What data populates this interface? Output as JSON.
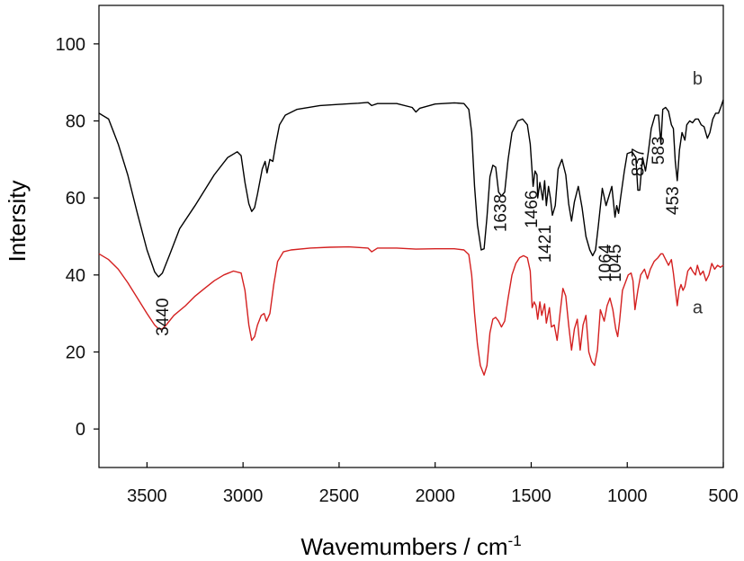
{
  "chart_data": {
    "type": "line",
    "xlabel": "Wavemumbers / cm",
    "xlabel_sup": "-1",
    "ylabel": "Intersity",
    "xlim": [
      3750,
      500
    ],
    "ylim": [
      -10,
      110
    ],
    "x_ticks": [
      3500,
      3000,
      2500,
      2000,
      1500,
      1000,
      500
    ],
    "y_ticks": [
      0,
      20,
      40,
      60,
      80,
      100
    ],
    "grid": false,
    "colors": {
      "a": "#d42020",
      "b": "#000000"
    },
    "series": [
      {
        "name": "b",
        "color": "#000000",
        "points": [
          [
            3750,
            82
          ],
          [
            3700,
            80.5
          ],
          [
            3650,
            74
          ],
          [
            3600,
            66
          ],
          [
            3550,
            56
          ],
          [
            3500,
            46.5
          ],
          [
            3460,
            40.8
          ],
          [
            3440,
            39.5
          ],
          [
            3420,
            40.5
          ],
          [
            3380,
            45.5
          ],
          [
            3330,
            52
          ],
          [
            3250,
            58
          ],
          [
            3150,
            66
          ],
          [
            3080,
            70.5
          ],
          [
            3030,
            72
          ],
          [
            3010,
            71
          ],
          [
            2990,
            64
          ],
          [
            2970,
            58.5
          ],
          [
            2955,
            56.5
          ],
          [
            2940,
            57.5
          ],
          [
            2925,
            61
          ],
          [
            2900,
            67.5
          ],
          [
            2885,
            69.5
          ],
          [
            2875,
            66.5
          ],
          [
            2860,
            70
          ],
          [
            2845,
            69.5
          ],
          [
            2830,
            74
          ],
          [
            2810,
            79
          ],
          [
            2780,
            81.5
          ],
          [
            2720,
            83
          ],
          [
            2600,
            84
          ],
          [
            2500,
            84.3
          ],
          [
            2400,
            84.6
          ],
          [
            2350,
            84.8
          ],
          [
            2330,
            84
          ],
          [
            2300,
            84.5
          ],
          [
            2200,
            84.5
          ],
          [
            2120,
            83.5
          ],
          [
            2100,
            82.3
          ],
          [
            2080,
            83.3
          ],
          [
            2000,
            84.4
          ],
          [
            1900,
            84.7
          ],
          [
            1850,
            84.5
          ],
          [
            1825,
            83
          ],
          [
            1810,
            77
          ],
          [
            1795,
            63
          ],
          [
            1780,
            53
          ],
          [
            1760,
            46.5
          ],
          [
            1745,
            46.8
          ],
          [
            1730,
            55
          ],
          [
            1715,
            65.5
          ],
          [
            1700,
            68.5
          ],
          [
            1685,
            68
          ],
          [
            1670,
            61.5
          ],
          [
            1655,
            60.5
          ],
          [
            1638,
            61.5
          ],
          [
            1620,
            70
          ],
          [
            1600,
            77
          ],
          [
            1570,
            80
          ],
          [
            1545,
            80.5
          ],
          [
            1520,
            79
          ],
          [
            1505,
            74
          ],
          [
            1490,
            63
          ],
          [
            1480,
            67
          ],
          [
            1470,
            66
          ],
          [
            1466,
            60
          ],
          [
            1455,
            64
          ],
          [
            1440,
            59.5
          ],
          [
            1430,
            64.5
          ],
          [
            1421,
            58
          ],
          [
            1410,
            63
          ],
          [
            1400,
            60
          ],
          [
            1390,
            55.5
          ],
          [
            1375,
            58
          ],
          [
            1360,
            67.5
          ],
          [
            1340,
            70
          ],
          [
            1320,
            66
          ],
          [
            1305,
            58.5
          ],
          [
            1290,
            54
          ],
          [
            1275,
            59
          ],
          [
            1255,
            63
          ],
          [
            1235,
            57.5
          ],
          [
            1215,
            50
          ],
          [
            1195,
            46.5
          ],
          [
            1180,
            45
          ],
          [
            1165,
            46.5
          ],
          [
            1150,
            53
          ],
          [
            1130,
            62.5
          ],
          [
            1110,
            58
          ],
          [
            1095,
            60.5
          ],
          [
            1080,
            63
          ],
          [
            1064,
            55
          ],
          [
            1055,
            58
          ],
          [
            1045,
            56
          ],
          [
            1035,
            60
          ],
          [
            1015,
            67
          ],
          [
            1000,
            71.5
          ],
          [
            975,
            72
          ],
          [
            955,
            70.5
          ],
          [
            945,
            62
          ],
          [
            935,
            62
          ],
          [
            920,
            70.5
          ],
          [
            905,
            67
          ],
          [
            890,
            72
          ],
          [
            875,
            78
          ],
          [
            855,
            81.5
          ],
          [
            837,
            81.5
          ],
          [
            825,
            74
          ],
          [
            815,
            83
          ],
          [
            800,
            83.5
          ],
          [
            785,
            82.5
          ],
          [
            770,
            79
          ],
          [
            760,
            78
          ],
          [
            750,
            69.5
          ],
          [
            740,
            64.5
          ],
          [
            728,
            72.5
          ],
          [
            715,
            77
          ],
          [
            700,
            75
          ],
          [
            690,
            79
          ],
          [
            675,
            80
          ],
          [
            660,
            79.5
          ],
          [
            645,
            80.5
          ],
          [
            630,
            80.5
          ],
          [
            615,
            79
          ],
          [
            600,
            78.5
          ],
          [
            583,
            75.5
          ],
          [
            570,
            77
          ],
          [
            555,
            80.5
          ],
          [
            540,
            82
          ],
          [
            525,
            82
          ],
          [
            510,
            84
          ],
          [
            500,
            85.5
          ]
        ]
      },
      {
        "name": "a",
        "color": "#d42020",
        "points": [
          [
            3750,
            45.5
          ],
          [
            3700,
            44
          ],
          [
            3650,
            41.5
          ],
          [
            3600,
            38
          ],
          [
            3550,
            34
          ],
          [
            3500,
            30
          ],
          [
            3460,
            27
          ],
          [
            3440,
            26
          ],
          [
            3420,
            26
          ],
          [
            3400,
            27
          ],
          [
            3360,
            29.5
          ],
          [
            3300,
            32
          ],
          [
            3250,
            34.5
          ],
          [
            3200,
            36.5
          ],
          [
            3150,
            38.5
          ],
          [
            3100,
            40
          ],
          [
            3050,
            41
          ],
          [
            3010,
            40.5
          ],
          [
            2990,
            36
          ],
          [
            2970,
            27
          ],
          [
            2955,
            23
          ],
          [
            2940,
            24
          ],
          [
            2925,
            27
          ],
          [
            2905,
            29.5
          ],
          [
            2890,
            30
          ],
          [
            2878,
            28
          ],
          [
            2860,
            30
          ],
          [
            2840,
            37.5
          ],
          [
            2820,
            43.5
          ],
          [
            2790,
            46
          ],
          [
            2750,
            46.5
          ],
          [
            2650,
            47
          ],
          [
            2550,
            47.2
          ],
          [
            2450,
            47.3
          ],
          [
            2350,
            47
          ],
          [
            2330,
            46
          ],
          [
            2300,
            47
          ],
          [
            2200,
            47
          ],
          [
            2100,
            46.7
          ],
          [
            2000,
            46.8
          ],
          [
            1900,
            46.8
          ],
          [
            1850,
            46.5
          ],
          [
            1825,
            45.3
          ],
          [
            1810,
            40
          ],
          [
            1795,
            30
          ],
          [
            1780,
            22
          ],
          [
            1765,
            16.5
          ],
          [
            1745,
            14
          ],
          [
            1730,
            16.5
          ],
          [
            1715,
            25
          ],
          [
            1700,
            28.5
          ],
          [
            1685,
            29
          ],
          [
            1670,
            28
          ],
          [
            1655,
            26.5
          ],
          [
            1638,
            28
          ],
          [
            1620,
            34
          ],
          [
            1600,
            40
          ],
          [
            1580,
            43
          ],
          [
            1560,
            44.5
          ],
          [
            1540,
            45
          ],
          [
            1520,
            44.5
          ],
          [
            1505,
            41
          ],
          [
            1495,
            31.5
          ],
          [
            1485,
            33
          ],
          [
            1475,
            32
          ],
          [
            1466,
            28.5
          ],
          [
            1455,
            33
          ],
          [
            1445,
            29.5
          ],
          [
            1430,
            32.5
          ],
          [
            1421,
            27.5
          ],
          [
            1405,
            31.5
          ],
          [
            1395,
            26.5
          ],
          [
            1380,
            27
          ],
          [
            1365,
            23
          ],
          [
            1350,
            30
          ],
          [
            1335,
            36.5
          ],
          [
            1320,
            34.5
          ],
          [
            1305,
            27
          ],
          [
            1290,
            20.5
          ],
          [
            1275,
            26
          ],
          [
            1260,
            28.5
          ],
          [
            1245,
            20.5
          ],
          [
            1230,
            27
          ],
          [
            1215,
            29.5
          ],
          [
            1200,
            20
          ],
          [
            1185,
            17.5
          ],
          [
            1170,
            16.5
          ],
          [
            1155,
            20.5
          ],
          [
            1140,
            31
          ],
          [
            1120,
            28
          ],
          [
            1105,
            32
          ],
          [
            1090,
            34
          ],
          [
            1075,
            31
          ],
          [
            1060,
            26
          ],
          [
            1050,
            24
          ],
          [
            1040,
            28
          ],
          [
            1025,
            36
          ],
          [
            1010,
            38
          ],
          [
            995,
            40
          ],
          [
            980,
            40.5
          ],
          [
            970,
            38.5
          ],
          [
            960,
            31
          ],
          [
            945,
            36
          ],
          [
            930,
            40
          ],
          [
            910,
            41.5
          ],
          [
            895,
            39
          ],
          [
            880,
            41.5
          ],
          [
            860,
            43.5
          ],
          [
            840,
            44.5
          ],
          [
            825,
            45.5
          ],
          [
            815,
            45.5
          ],
          [
            800,
            44
          ],
          [
            785,
            42.5
          ],
          [
            770,
            44
          ],
          [
            760,
            40.5
          ],
          [
            748,
            35.5
          ],
          [
            740,
            32
          ],
          [
            730,
            36
          ],
          [
            720,
            37.5
          ],
          [
            710,
            36
          ],
          [
            700,
            37
          ],
          [
            685,
            41
          ],
          [
            670,
            42
          ],
          [
            660,
            41
          ],
          [
            645,
            40
          ],
          [
            635,
            42.5
          ],
          [
            620,
            40
          ],
          [
            605,
            41
          ],
          [
            590,
            38.5
          ],
          [
            575,
            40
          ],
          [
            560,
            43
          ],
          [
            545,
            41.5
          ],
          [
            530,
            42.5
          ],
          [
            515,
            42
          ],
          [
            500,
            42.5
          ]
        ]
      }
    ],
    "series_labels": [
      {
        "text": "b",
        "x": 660,
        "y": 89.5
      },
      {
        "text": "a",
        "x": 660,
        "y": 30
      }
    ],
    "annotations": [
      {
        "text": "3440",
        "x": 3390,
        "y": 34
      },
      {
        "text": "1638",
        "x": 1630,
        "y": 61
      },
      {
        "text": "1466",
        "x": 1470,
        "y": 62
      },
      {
        "text": "1421",
        "x": 1400,
        "y": 53
      },
      {
        "text": "1064",
        "x": 1085,
        "y": 48
      },
      {
        "text": "1045",
        "x": 1035,
        "y": 48
      },
      {
        "text": "837",
        "x": 915,
        "y": 73
      },
      {
        "text": "583",
        "x": 810,
        "y": 76
      },
      {
        "text": "453",
        "x": 735,
        "y": 63
      }
    ]
  }
}
